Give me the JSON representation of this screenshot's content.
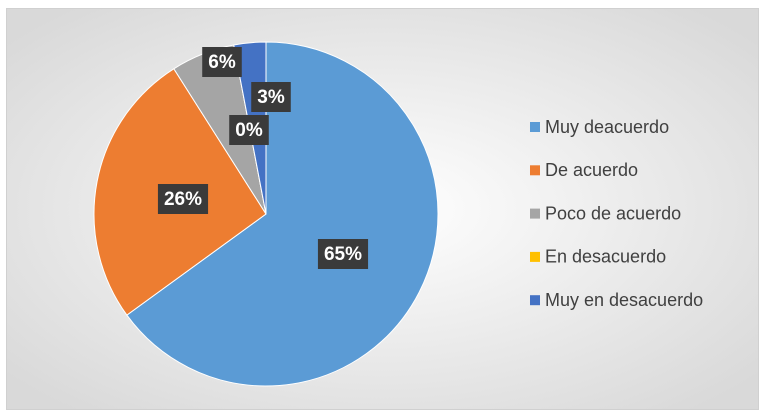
{
  "chart_data": {
    "type": "pie",
    "categories": [
      "Muy deacuerdo",
      "De acuerdo",
      "Poco de acuerdo",
      "En desacuerdo",
      "Muy en desacuerdo"
    ],
    "values": [
      65,
      26,
      6,
      0,
      3
    ],
    "value_labels": [
      "65%",
      "26%",
      "6%",
      "0%",
      "3%"
    ],
    "colors": [
      "#5b9bd5",
      "#ed7d31",
      "#a5a5a5",
      "#ffc000",
      "#4472c4"
    ],
    "legend": "right"
  }
}
